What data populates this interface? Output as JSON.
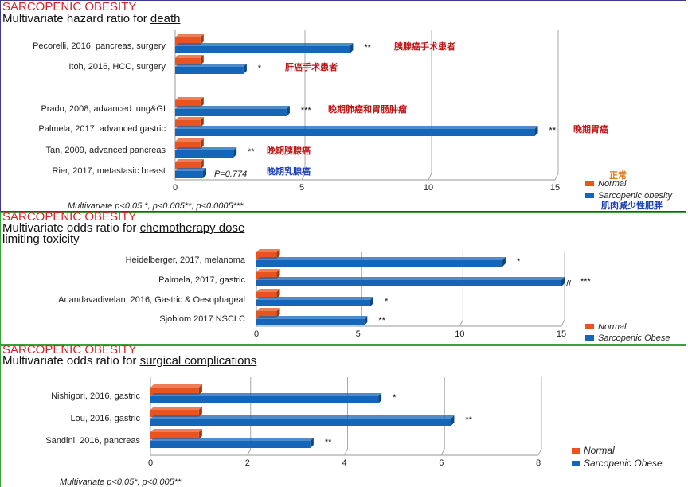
{
  "colors": {
    "normal": "#e8531f",
    "sarcopenic": "#1565b8",
    "heading_red": "#d8232a",
    "note_red": "#c01818",
    "note_blue": "#1a3fb8",
    "note_orange": "#e07818"
  },
  "chart_data": [
    {
      "type": "bar",
      "orientation": "horizontal",
      "heading": "SARCOPENIC OBESITY",
      "title_prefix": "Multivariate hazard ratio for ",
      "title_underlined": "death",
      "categories": [
        "Pecorelli, 2016, pancreas, surgery",
        "Itoh, 2016, HCC, surgery",
        "Prado, 2008, advanced lung&GI",
        "Palmela, 2017, advanced gastric",
        "Tan, 2009, advanced pancreas",
        "Rier, 2017, metastasic breast"
      ],
      "series": [
        {
          "name": "Normal",
          "values": [
            1,
            1,
            1,
            1,
            1,
            1
          ]
        },
        {
          "name": "Sarcopenic obesity",
          "values": [
            6.9,
            2.7,
            4.4,
            14.2,
            2.3,
            1.1
          ]
        }
      ],
      "significance": [
        "**",
        "*",
        "***",
        "**",
        "**",
        ""
      ],
      "pvalue_labels": [
        "",
        "",
        "",
        "",
        "",
        "P=0.774"
      ],
      "annotations": [
        "胰腺癌手术患者",
        "肝癌手术患者",
        "晚期肺癌和胃肠肿瘤",
        "晚期胃癌",
        "晚期胰腺癌",
        "晚期乳腺癌"
      ],
      "xticks": [
        "0",
        "5",
        "10",
        "15"
      ],
      "xlim": [
        0,
        15
      ],
      "legend": [
        "Normal",
        "Sarcopenic obesity"
      ],
      "legend_notes": [
        "正常",
        "肌肉减少性肥胖"
      ],
      "footnote": "Multivariate p<0.05 *, p<0.005**, p<0.0005***"
    },
    {
      "type": "bar",
      "orientation": "horizontal",
      "heading": "SARCOPENIC OBESITY",
      "title_line1_prefix": "Multivariate odds ratio for ",
      "title_line1_underlined": "chemotherapy dose",
      "title_line2_underlined": "limiting toxicity",
      "categories": [
        "Heidelberger, 2017, melanoma",
        "Palmela, 2017, gastric",
        "Anandavadivelan, 2016, Gastric & Oesophageal",
        "Sjoblom 2017 NSCLC"
      ],
      "series": [
        {
          "name": "Normal",
          "values": [
            1,
            1,
            1,
            1
          ]
        },
        {
          "name": "Sarcopenic Obese",
          "values": [
            12.1,
            15.2,
            5.6,
            5.3
          ]
        }
      ],
      "significance": [
        "*",
        "***",
        "*",
        "**"
      ],
      "break_mark": "//",
      "xticks": [
        "0",
        "5",
        "10",
        "15"
      ],
      "xlim": [
        0,
        15
      ],
      "legend": [
        "Normal",
        "Sarcopenic Obese"
      ]
    },
    {
      "type": "bar",
      "orientation": "horizontal",
      "heading": "SARCOPENIC OBESITY",
      "title_prefix": "Multivariate odds ratio for ",
      "title_underlined": "surgical complications",
      "categories": [
        "Nishigori, 2016, gastric",
        "Lou, 2016, gastric",
        "Sandini, 2016, pancreas"
      ],
      "series": [
        {
          "name": "Normal",
          "values": [
            1,
            1,
            1
          ]
        },
        {
          "name": "Sarcopenic Obese",
          "values": [
            4.7,
            6.2,
            3.3
          ]
        }
      ],
      "significance": [
        "*",
        "**",
        "**"
      ],
      "xticks": [
        "0",
        "2",
        "4",
        "6",
        "8"
      ],
      "xlim": [
        0,
        8
      ],
      "legend": [
        "Normal",
        "Sarcopenic Obese"
      ],
      "footnote": "Multivariate p<0.05*, p<0.005**"
    }
  ]
}
